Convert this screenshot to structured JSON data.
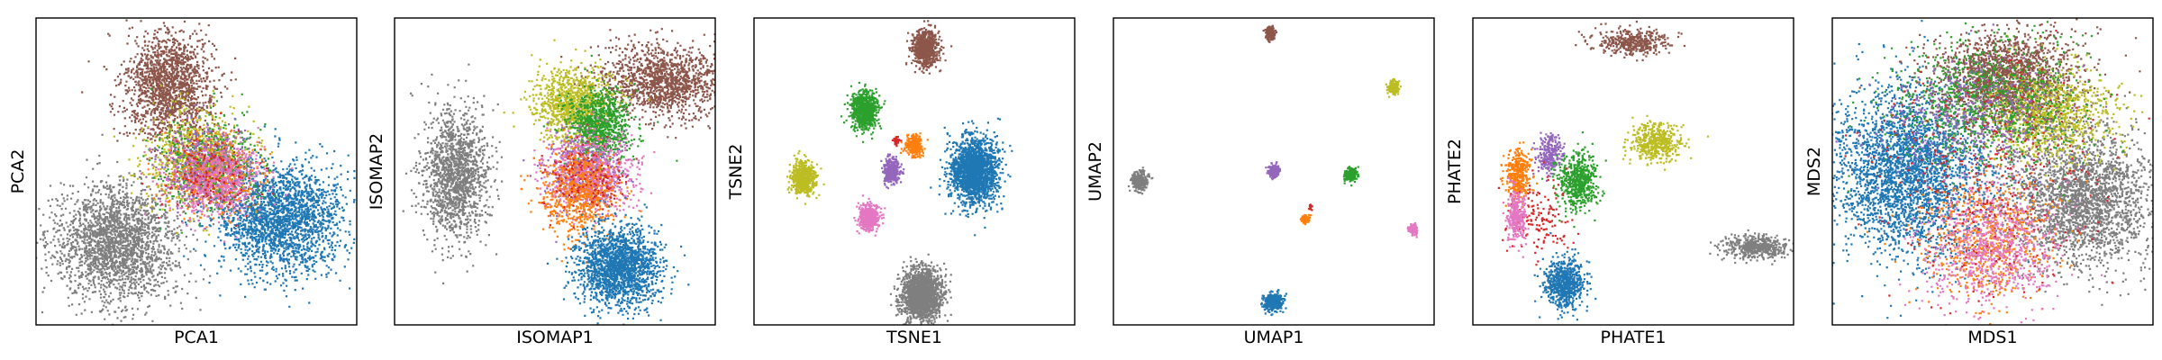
{
  "chart_data": [
    {
      "type": "scatter",
      "xlabel": "PCA1",
      "ylabel": "PCA2",
      "ticks": "none",
      "grid": false,
      "xlim": [
        -1,
        1
      ],
      "ylim": [
        -1,
        1
      ],
      "clusters": [
        {
          "color": "#7f7f7f",
          "center": [
            -0.5,
            -0.47
          ],
          "spread": [
            0.19,
            0.19
          ],
          "n": 2200
        },
        {
          "color": "#8c564b",
          "center": [
            -0.17,
            0.56
          ],
          "spread": [
            0.14,
            0.17
          ],
          "n": 1600
        },
        {
          "color": "#1f77b4",
          "center": [
            0.52,
            -0.31
          ],
          "spread": [
            0.2,
            0.17
          ],
          "n": 2200
        },
        {
          "color": "#bcbd22",
          "center": [
            0.0,
            0.08
          ],
          "spread": [
            0.17,
            0.16
          ],
          "n": 700
        },
        {
          "color": "#2ca02c",
          "center": [
            0.08,
            0.04
          ],
          "spread": [
            0.15,
            0.14
          ],
          "n": 600
        },
        {
          "color": "#ff7f0e",
          "center": [
            0.1,
            -0.02
          ],
          "spread": [
            0.14,
            0.13
          ],
          "n": 500
        },
        {
          "color": "#9467bd",
          "center": [
            0.05,
            0.02
          ],
          "spread": [
            0.15,
            0.14
          ],
          "n": 400
        },
        {
          "color": "#e377c2",
          "center": [
            0.12,
            -0.04
          ],
          "spread": [
            0.15,
            0.13
          ],
          "n": 600
        },
        {
          "color": "#d62728",
          "center": [
            0.08,
            0.0
          ],
          "spread": [
            0.14,
            0.13
          ],
          "n": 150
        }
      ]
    },
    {
      "type": "scatter",
      "xlabel": "ISOMAP1",
      "ylabel": "ISOMAP2",
      "ticks": "none",
      "grid": false,
      "xlim": [
        -1,
        1
      ],
      "ylim": [
        -1,
        1
      ],
      "clusters": [
        {
          "color": "#7f7f7f",
          "center": [
            -0.62,
            -0.02
          ],
          "spread": [
            0.1,
            0.2
          ],
          "n": 1500
        },
        {
          "color": "#8c564b",
          "center": [
            0.68,
            0.58
          ],
          "spread": [
            0.2,
            0.12
          ],
          "n": 1400
        },
        {
          "color": "#bcbd22",
          "center": [
            0.12,
            0.44
          ],
          "spread": [
            0.12,
            0.12
          ],
          "n": 1000
        },
        {
          "color": "#2ca02c",
          "center": [
            0.28,
            0.3
          ],
          "spread": [
            0.1,
            0.12
          ],
          "n": 900
        },
        {
          "color": "#9467bd",
          "center": [
            0.2,
            0.0
          ],
          "spread": [
            0.12,
            0.12
          ],
          "n": 500
        },
        {
          "color": "#e377c2",
          "center": [
            0.22,
            -0.02
          ],
          "spread": [
            0.14,
            0.13
          ],
          "n": 700
        },
        {
          "color": "#ff7f0e",
          "center": [
            0.16,
            -0.14
          ],
          "spread": [
            0.12,
            0.15
          ],
          "n": 700
        },
        {
          "color": "#d62728",
          "center": [
            0.2,
            -0.05
          ],
          "spread": [
            0.12,
            0.12
          ],
          "n": 150
        },
        {
          "color": "#1f77b4",
          "center": [
            0.4,
            -0.62
          ],
          "spread": [
            0.13,
            0.13
          ],
          "n": 1800
        }
      ]
    },
    {
      "type": "scatter",
      "xlabel": "TSNE1",
      "ylabel": "TSNE2",
      "ticks": "none",
      "grid": false,
      "xlim": [
        -1,
        1
      ],
      "ylim": [
        -1,
        1
      ],
      "clusters": [
        {
          "color": "#8c564b",
          "center": [
            0.07,
            0.8
          ],
          "spread": [
            0.04,
            0.06
          ],
          "n": 800
        },
        {
          "color": "#2ca02c",
          "center": [
            -0.31,
            0.4
          ],
          "spread": [
            0.04,
            0.06
          ],
          "n": 800
        },
        {
          "color": "#d62728",
          "center": [
            -0.11,
            0.2
          ],
          "spread": [
            0.01,
            0.01
          ],
          "n": 40
        },
        {
          "color": "#ff7f0e",
          "center": [
            0.0,
            0.17
          ],
          "spread": [
            0.025,
            0.035
          ],
          "n": 300
        },
        {
          "color": "#9467bd",
          "center": [
            -0.14,
            0.0
          ],
          "spread": [
            0.025,
            0.04
          ],
          "n": 400
        },
        {
          "color": "#1f77b4",
          "center": [
            0.37,
            0.0
          ],
          "spread": [
            0.07,
            0.11
          ],
          "n": 2000
        },
        {
          "color": "#bcbd22",
          "center": [
            -0.69,
            -0.04
          ],
          "spread": [
            0.035,
            0.05
          ],
          "n": 600
        },
        {
          "color": "#e377c2",
          "center": [
            -0.28,
            -0.3
          ],
          "spread": [
            0.03,
            0.04
          ],
          "n": 500
        },
        {
          "color": "#7f7f7f",
          "center": [
            0.05,
            -0.8
          ],
          "spread": [
            0.06,
            0.08
          ],
          "n": 2000
        }
      ]
    },
    {
      "type": "scatter",
      "xlabel": "UMAP1",
      "ylabel": "UMAP2",
      "ticks": "none",
      "grid": false,
      "xlim": [
        -1,
        1
      ],
      "ylim": [
        -1,
        1
      ],
      "clusters": [
        {
          "color": "#8c564b",
          "center": [
            -0.02,
            0.9
          ],
          "spread": [
            0.015,
            0.02
          ],
          "n": 200
        },
        {
          "color": "#bcbd22",
          "center": [
            0.75,
            0.55
          ],
          "spread": [
            0.015,
            0.02
          ],
          "n": 200
        },
        {
          "color": "#7f7f7f",
          "center": [
            -0.84,
            -0.06
          ],
          "spread": [
            0.025,
            0.03
          ],
          "n": 300
        },
        {
          "color": "#9467bd",
          "center": [
            0.0,
            0.0
          ],
          "spread": [
            0.015,
            0.02
          ],
          "n": 200
        },
        {
          "color": "#2ca02c",
          "center": [
            0.48,
            -0.02
          ],
          "spread": [
            0.02,
            0.02
          ],
          "n": 200
        },
        {
          "color": "#d62728",
          "center": [
            0.23,
            -0.23
          ],
          "spread": [
            0.005,
            0.01
          ],
          "n": 20
        },
        {
          "color": "#ff7f0e",
          "center": [
            0.2,
            -0.31
          ],
          "spread": [
            0.012,
            0.012
          ],
          "n": 120
        },
        {
          "color": "#e377c2",
          "center": [
            0.87,
            -0.38
          ],
          "spread": [
            0.015,
            0.015
          ],
          "n": 150
        },
        {
          "color": "#1f77b4",
          "center": [
            0.0,
            -0.85
          ],
          "spread": [
            0.03,
            0.03
          ],
          "n": 350
        }
      ]
    },
    {
      "type": "scatter",
      "xlabel": "PHATE1",
      "ylabel": "PHATE2",
      "ticks": "none",
      "grid": false,
      "xlim": [
        -1,
        1
      ],
      "ylim": [
        -1,
        1
      ],
      "clusters": [
        {
          "color": "#8c564b",
          "center": [
            0.0,
            0.84
          ],
          "spread": [
            0.12,
            0.04
          ],
          "n": 400
        },
        {
          "color": "#bcbd22",
          "center": [
            0.14,
            0.19
          ],
          "spread": [
            0.08,
            0.06
          ],
          "n": 500
        },
        {
          "color": "#9467bd",
          "center": [
            -0.52,
            0.12
          ],
          "spread": [
            0.04,
            0.06
          ],
          "n": 250
        },
        {
          "color": "#ff7f0e",
          "center": [
            -0.72,
            -0.02
          ],
          "spread": [
            0.04,
            0.08
          ],
          "n": 350
        },
        {
          "color": "#2ca02c",
          "center": [
            -0.35,
            -0.06
          ],
          "spread": [
            0.06,
            0.09
          ],
          "n": 600
        },
        {
          "color": "#d62728",
          "center": [
            -0.58,
            -0.3
          ],
          "spread": [
            0.1,
            0.12
          ],
          "n": 150
        },
        {
          "color": "#e377c2",
          "center": [
            -0.73,
            -0.29
          ],
          "spread": [
            0.03,
            0.08
          ],
          "n": 300
        },
        {
          "color": "#1f77b4",
          "center": [
            -0.43,
            -0.73
          ],
          "spread": [
            0.06,
            0.08
          ],
          "n": 700
        },
        {
          "color": "#7f7f7f",
          "center": [
            0.77,
            -0.49
          ],
          "spread": [
            0.1,
            0.04
          ],
          "n": 500
        }
      ]
    },
    {
      "type": "scatter",
      "xlabel": "MDS1",
      "ylabel": "MDS2",
      "ticks": "none",
      "grid": false,
      "xlim": [
        -1,
        1
      ],
      "ylim": [
        -1,
        1
      ],
      "clusters": [
        {
          "color": "#1f77b4",
          "center": [
            -0.53,
            0.0
          ],
          "spread": [
            0.25,
            0.27
          ],
          "n": 3000
        },
        {
          "color": "#7f7f7f",
          "center": [
            0.56,
            -0.18
          ],
          "spread": [
            0.22,
            0.22
          ],
          "n": 2400
        },
        {
          "color": "#8c564b",
          "center": [
            0.1,
            0.6
          ],
          "spread": [
            0.22,
            0.15
          ],
          "n": 1800
        },
        {
          "color": "#bcbd22",
          "center": [
            0.35,
            0.37
          ],
          "spread": [
            0.2,
            0.15
          ],
          "n": 1000
        },
        {
          "color": "#2ca02c",
          "center": [
            -0.05,
            0.45
          ],
          "spread": [
            0.3,
            0.2
          ],
          "n": 1000
        },
        {
          "color": "#9467bd",
          "center": [
            -0.1,
            0.35
          ],
          "spread": [
            0.3,
            0.2
          ],
          "n": 500
        },
        {
          "color": "#ff7f0e",
          "center": [
            -0.05,
            -0.45
          ],
          "spread": [
            0.2,
            0.2
          ],
          "n": 700
        },
        {
          "color": "#e377c2",
          "center": [
            0.0,
            -0.5
          ],
          "spread": [
            0.2,
            0.2
          ],
          "n": 800
        },
        {
          "color": "#d62728",
          "center": [
            -0.05,
            -0.05
          ],
          "spread": [
            0.35,
            0.4
          ],
          "n": 400
        }
      ]
    }
  ]
}
